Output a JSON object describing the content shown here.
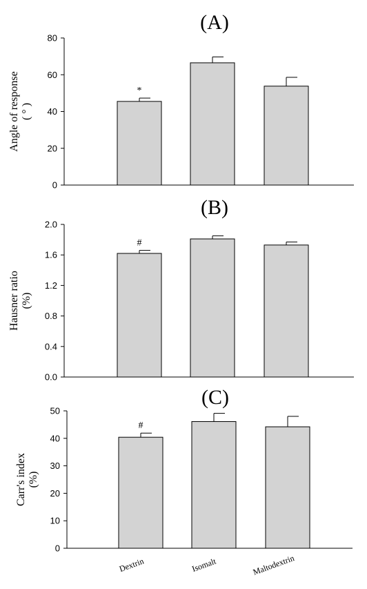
{
  "chart_data": [
    {
      "type": "bar",
      "title": "(A)",
      "ylabel": [
        "Angle of response",
        "( ° )"
      ],
      "categories": [
        "Dextrin",
        "Isomalt",
        "Maltodextrin"
      ],
      "values": [
        45.5,
        66.5,
        53.8
      ],
      "errors": [
        1.8,
        3.2,
        4.8
      ],
      "annotations": [
        "*",
        "",
        ""
      ],
      "ylim": [
        0,
        80
      ],
      "yticks": [
        "0",
        "20",
        "40",
        "60",
        "80"
      ],
      "show_category_labels": false
    },
    {
      "type": "bar",
      "title": "(B)",
      "ylabel": [
        "Hausner ratio",
        "(%)"
      ],
      "categories": [
        "Dextrin",
        "Isomalt",
        "Maltodextrin"
      ],
      "values": [
        1.62,
        1.81,
        1.73
      ],
      "errors": [
        0.04,
        0.04,
        0.04
      ],
      "annotations": [
        "#",
        "",
        ""
      ],
      "ylim": [
        0,
        2.0
      ],
      "yticks": [
        "0.0",
        "0.4",
        "0.8",
        "1.2",
        "1.6",
        "2.0"
      ],
      "show_category_labels": false
    },
    {
      "type": "bar",
      "title": "(C)",
      "ylabel": [
        "Carr's index",
        "(%)"
      ],
      "categories": [
        "Dextrin",
        "Isomalt",
        "Maltodextrin"
      ],
      "values": [
        40.4,
        46.1,
        44.2
      ],
      "errors": [
        1.5,
        3.0,
        3.8
      ],
      "annotations": [
        "#",
        "",
        ""
      ],
      "ylim": [
        0,
        50
      ],
      "yticks": [
        "0",
        "10",
        "20",
        "30",
        "40",
        "50"
      ],
      "show_category_labels": true
    }
  ],
  "style": {
    "bar_fill": "#d3d3d3",
    "bar_stroke": "#000000",
    "axis_color": "#000000"
  }
}
